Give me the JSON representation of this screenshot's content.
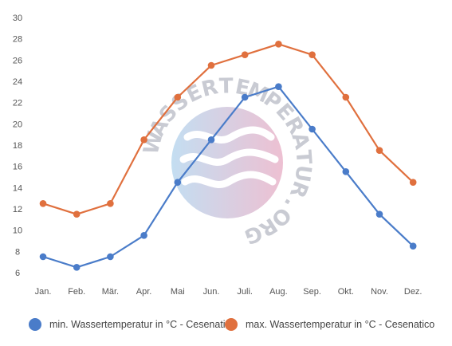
{
  "watermark_text": "WASSERTEMPERATUR.ORG",
  "chart_data": {
    "type": "line",
    "categories": [
      "Jan.",
      "Feb.",
      "Mär.",
      "Apr.",
      "Mai",
      "Jun.",
      "Juli.",
      "Aug.",
      "Sep.",
      "Okt.",
      "Nov.",
      "Dez."
    ],
    "y_ticks": [
      6,
      8,
      10,
      12,
      14,
      16,
      18,
      20,
      22,
      24,
      26,
      28,
      30
    ],
    "ylim": [
      6,
      30
    ],
    "grid": false,
    "legend_position": "bottom",
    "series": [
      {
        "name": "min. Wassertemperatur in °C - Cesenatico",
        "color": "#4a7cc9",
        "values": [
          7.5,
          6.5,
          7.5,
          9.5,
          14.5,
          18.5,
          22.5,
          23.5,
          19.5,
          15.5,
          11.5,
          8.5
        ]
      },
      {
        "name": "max. Wassertemperatur in °C - Cesenatico",
        "color": "#e0703e",
        "values": [
          12.5,
          11.5,
          12.5,
          18.5,
          22.5,
          25.5,
          26.5,
          27.5,
          26.5,
          22.5,
          17.5,
          14.5
        ]
      }
    ]
  }
}
